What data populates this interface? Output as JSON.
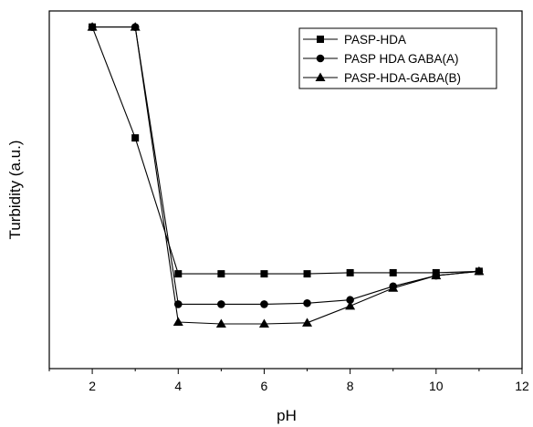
{
  "chart_data": {
    "type": "line",
    "title": "",
    "xlabel": "pH",
    "ylabel": "Turbidity (a.u.)",
    "xlim": [
      1,
      12
    ],
    "ylim": [
      0,
      100
    ],
    "xticks": [
      2,
      4,
      6,
      8,
      10,
      12
    ],
    "yticks_shown": false,
    "grid": false,
    "legend_position": "top-right",
    "series": [
      {
        "name": "PASP-HDA",
        "marker": "square",
        "x": [
          2,
          3,
          4,
          5,
          6,
          7,
          8,
          9,
          10,
          11
        ],
        "y": [
          95.5,
          64.5,
          26.5,
          26.5,
          26.5,
          26.5,
          26.8,
          26.8,
          26.8,
          27.2
        ]
      },
      {
        "name": "PASP HDA GABA(A)",
        "marker": "circle",
        "x": [
          2,
          3,
          4,
          5,
          6,
          7,
          8,
          9,
          10,
          11
        ],
        "y": [
          95.5,
          95.5,
          18.0,
          18.0,
          18.0,
          18.3,
          19.2,
          23.0,
          26.0,
          27.2
        ]
      },
      {
        "name": "PASP-HDA-GABA(B)",
        "marker": "triangle",
        "x": [
          2,
          3,
          4,
          5,
          6,
          7,
          8,
          9,
          10,
          11
        ],
        "y": [
          95.5,
          95.5,
          13.0,
          12.5,
          12.5,
          12.8,
          17.5,
          22.5,
          26.0,
          27.2
        ]
      }
    ]
  }
}
